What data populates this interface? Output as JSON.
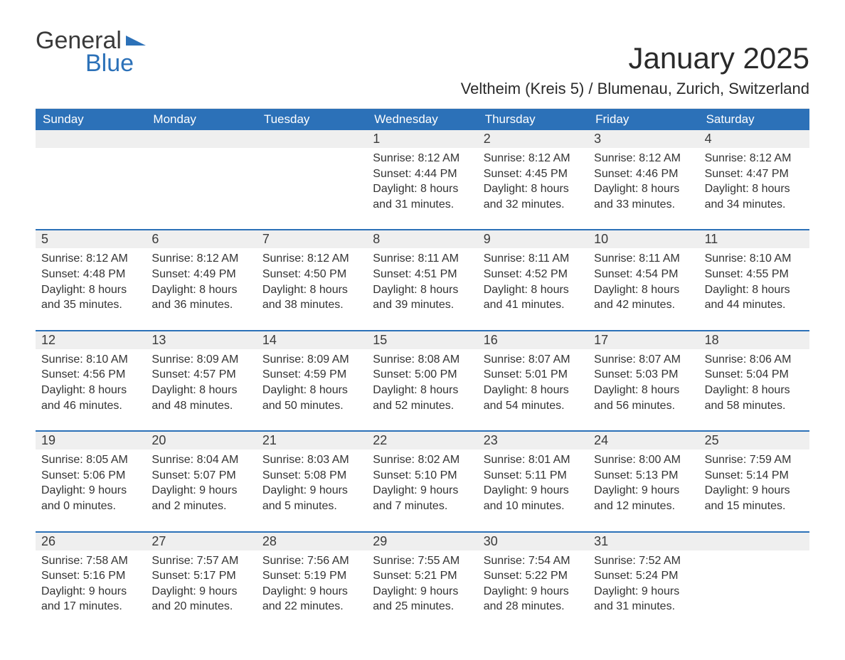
{
  "logo": {
    "word1": "General",
    "word2": "Blue"
  },
  "title": "January 2025",
  "subtitle": "Veltheim (Kreis 5) / Blumenau, Zurich, Switzerland",
  "colors": {
    "brand_blue": "#2c71b8",
    "header_bg": "#2c71b8",
    "header_fg": "#ffffff",
    "numrow_bg": "#efefef",
    "text": "#333333",
    "background": "#ffffff"
  },
  "labels": {
    "sunrise": "Sunrise:",
    "sunset": "Sunset:",
    "daylight_prefix": "Daylight:",
    "daylight_suffix_hours": "hours",
    "daylight_joiner": "and",
    "daylight_suffix_minutes": "minutes."
  },
  "calendar": {
    "weekdays": [
      "Sunday",
      "Monday",
      "Tuesday",
      "Wednesday",
      "Thursday",
      "Friday",
      "Saturday"
    ],
    "start_weekday_index": 3,
    "days": [
      {
        "n": 1,
        "sunrise": "8:12 AM",
        "sunset": "4:44 PM",
        "dl_h": 8,
        "dl_m": 31
      },
      {
        "n": 2,
        "sunrise": "8:12 AM",
        "sunset": "4:45 PM",
        "dl_h": 8,
        "dl_m": 32
      },
      {
        "n": 3,
        "sunrise": "8:12 AM",
        "sunset": "4:46 PM",
        "dl_h": 8,
        "dl_m": 33
      },
      {
        "n": 4,
        "sunrise": "8:12 AM",
        "sunset": "4:47 PM",
        "dl_h": 8,
        "dl_m": 34
      },
      {
        "n": 5,
        "sunrise": "8:12 AM",
        "sunset": "4:48 PM",
        "dl_h": 8,
        "dl_m": 35
      },
      {
        "n": 6,
        "sunrise": "8:12 AM",
        "sunset": "4:49 PM",
        "dl_h": 8,
        "dl_m": 36
      },
      {
        "n": 7,
        "sunrise": "8:12 AM",
        "sunset": "4:50 PM",
        "dl_h": 8,
        "dl_m": 38
      },
      {
        "n": 8,
        "sunrise": "8:11 AM",
        "sunset": "4:51 PM",
        "dl_h": 8,
        "dl_m": 39
      },
      {
        "n": 9,
        "sunrise": "8:11 AM",
        "sunset": "4:52 PM",
        "dl_h": 8,
        "dl_m": 41
      },
      {
        "n": 10,
        "sunrise": "8:11 AM",
        "sunset": "4:54 PM",
        "dl_h": 8,
        "dl_m": 42
      },
      {
        "n": 11,
        "sunrise": "8:10 AM",
        "sunset": "4:55 PM",
        "dl_h": 8,
        "dl_m": 44
      },
      {
        "n": 12,
        "sunrise": "8:10 AM",
        "sunset": "4:56 PM",
        "dl_h": 8,
        "dl_m": 46
      },
      {
        "n": 13,
        "sunrise": "8:09 AM",
        "sunset": "4:57 PM",
        "dl_h": 8,
        "dl_m": 48
      },
      {
        "n": 14,
        "sunrise": "8:09 AM",
        "sunset": "4:59 PM",
        "dl_h": 8,
        "dl_m": 50
      },
      {
        "n": 15,
        "sunrise": "8:08 AM",
        "sunset": "5:00 PM",
        "dl_h": 8,
        "dl_m": 52
      },
      {
        "n": 16,
        "sunrise": "8:07 AM",
        "sunset": "5:01 PM",
        "dl_h": 8,
        "dl_m": 54
      },
      {
        "n": 17,
        "sunrise": "8:07 AM",
        "sunset": "5:03 PM",
        "dl_h": 8,
        "dl_m": 56
      },
      {
        "n": 18,
        "sunrise": "8:06 AM",
        "sunset": "5:04 PM",
        "dl_h": 8,
        "dl_m": 58
      },
      {
        "n": 19,
        "sunrise": "8:05 AM",
        "sunset": "5:06 PM",
        "dl_h": 9,
        "dl_m": 0
      },
      {
        "n": 20,
        "sunrise": "8:04 AM",
        "sunset": "5:07 PM",
        "dl_h": 9,
        "dl_m": 2
      },
      {
        "n": 21,
        "sunrise": "8:03 AM",
        "sunset": "5:08 PM",
        "dl_h": 9,
        "dl_m": 5
      },
      {
        "n": 22,
        "sunrise": "8:02 AM",
        "sunset": "5:10 PM",
        "dl_h": 9,
        "dl_m": 7
      },
      {
        "n": 23,
        "sunrise": "8:01 AM",
        "sunset": "5:11 PM",
        "dl_h": 9,
        "dl_m": 10
      },
      {
        "n": 24,
        "sunrise": "8:00 AM",
        "sunset": "5:13 PM",
        "dl_h": 9,
        "dl_m": 12
      },
      {
        "n": 25,
        "sunrise": "7:59 AM",
        "sunset": "5:14 PM",
        "dl_h": 9,
        "dl_m": 15
      },
      {
        "n": 26,
        "sunrise": "7:58 AM",
        "sunset": "5:16 PM",
        "dl_h": 9,
        "dl_m": 17
      },
      {
        "n": 27,
        "sunrise": "7:57 AM",
        "sunset": "5:17 PM",
        "dl_h": 9,
        "dl_m": 20
      },
      {
        "n": 28,
        "sunrise": "7:56 AM",
        "sunset": "5:19 PM",
        "dl_h": 9,
        "dl_m": 22
      },
      {
        "n": 29,
        "sunrise": "7:55 AM",
        "sunset": "5:21 PM",
        "dl_h": 9,
        "dl_m": 25
      },
      {
        "n": 30,
        "sunrise": "7:54 AM",
        "sunset": "5:22 PM",
        "dl_h": 9,
        "dl_m": 28
      },
      {
        "n": 31,
        "sunrise": "7:52 AM",
        "sunset": "5:24 PM",
        "dl_h": 9,
        "dl_m": 31
      }
    ]
  }
}
